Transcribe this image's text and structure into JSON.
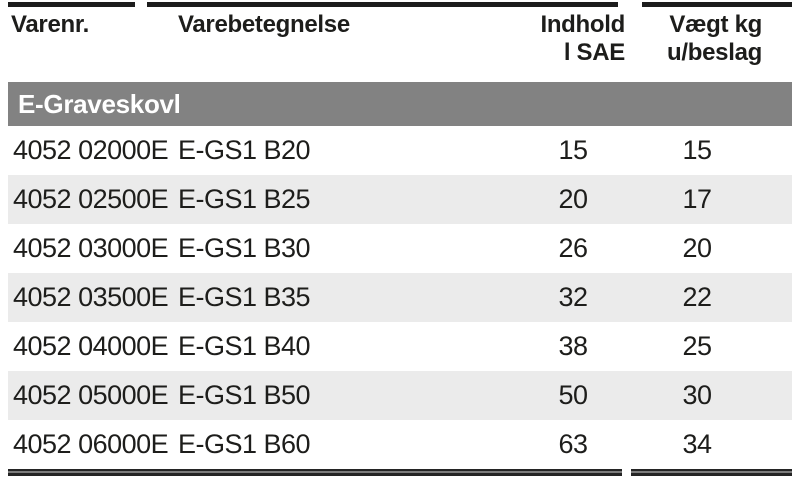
{
  "table": {
    "columns": [
      {
        "label": "Varenr."
      },
      {
        "label": "Varebetegnelse"
      },
      {
        "label_line1": "Indhold",
        "label_line2": "l SAE"
      },
      {
        "label_line1": "Vægt kg",
        "label_line2": "u/beslag"
      }
    ],
    "section": "E-Graveskovl",
    "rows": [
      {
        "varenr": "4052 02000E",
        "betegnelse": "E-GS1 B20",
        "indhold": "15",
        "vaegt": "15"
      },
      {
        "varenr": "4052 02500E",
        "betegnelse": "E-GS1 B25",
        "indhold": "20",
        "vaegt": "17"
      },
      {
        "varenr": "4052 03000E",
        "betegnelse": "E-GS1 B30",
        "indhold": "26",
        "vaegt": "20"
      },
      {
        "varenr": "4052 03500E",
        "betegnelse": "E-GS1 B35",
        "indhold": "32",
        "vaegt": "22"
      },
      {
        "varenr": "4052 04000E",
        "betegnelse": "E-GS1 B40",
        "indhold": "38",
        "vaegt": "25"
      },
      {
        "varenr": "4052 05000E",
        "betegnelse": "E-GS1 B50",
        "indhold": "50",
        "vaegt": "30"
      },
      {
        "varenr": "4052 06000E",
        "betegnelse": "E-GS1 B60",
        "indhold": "63",
        "vaegt": "34"
      }
    ]
  },
  "colors": {
    "text": "#1d1d1b",
    "section_band": "#828282",
    "section_text": "#ffffff",
    "row_alt": "#ebebeb",
    "rule": "#1c1c1c"
  }
}
